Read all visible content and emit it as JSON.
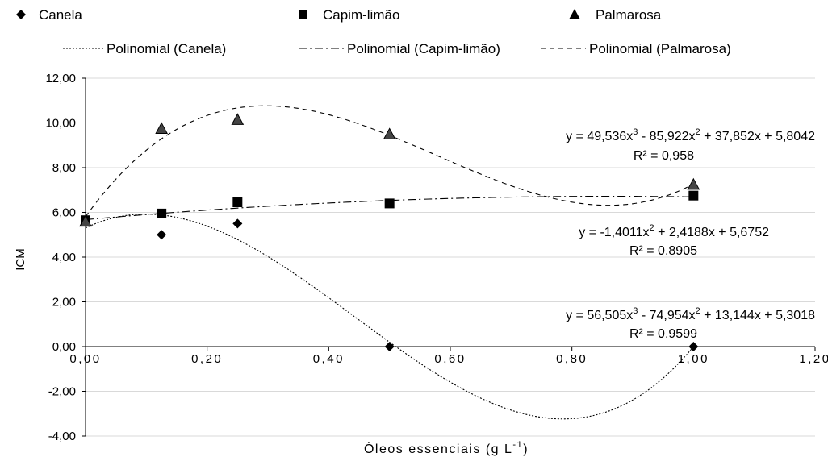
{
  "chart_data": {
    "type": "scatter",
    "xlabel": "Óleos essenciais (g L",
    "xlabel_sup": "-1",
    "xlabel_close": ")",
    "ylabel": "ICM",
    "xlim": [
      0,
      1.2
    ],
    "ylim": [
      -4,
      12
    ],
    "x_ticks": [
      0,
      0.2,
      0.4,
      0.6,
      0.8,
      1.0,
      1.2
    ],
    "y_ticks": [
      -4,
      -2,
      0,
      2,
      4,
      6,
      8,
      10,
      12
    ],
    "x_tick_labels": [
      "0,00",
      "0,20",
      "0,40",
      "0,60",
      "0,80",
      "1,00",
      "1,20"
    ],
    "y_tick_labels": [
      "-4,00",
      "-2,00",
      "0,00",
      "2,00",
      "4,00",
      "6,00",
      "8,00",
      "10,00",
      "12,00"
    ],
    "grid": "horizontal",
    "legend_position": "top",
    "series": [
      {
        "name": "Canela",
        "marker": "diamond",
        "x": [
          0,
          0.125,
          0.25,
          0.5,
          1.0
        ],
        "y": [
          5.6,
          5.0,
          5.5,
          0.0,
          0.0
        ],
        "trend": {
          "name": "Polinomial (Canela)",
          "style": "dotted",
          "coefficients": [
            5.3018,
            13.144,
            -74.954,
            56.505
          ]
        },
        "equation": {
          "prefix": "y = 56,505x",
          "sup1": "3",
          "mid1": " - 74,954x",
          "sup2": "2",
          "rest": " + 13,144x + 5,3018",
          "r2": "R² = 0,9599"
        }
      },
      {
        "name": "Capim-limão",
        "marker": "square",
        "x": [
          0,
          0.125,
          0.25,
          0.5,
          1.0
        ],
        "y": [
          5.65,
          5.95,
          6.45,
          6.4,
          6.75
        ],
        "trend": {
          "name": "Polinomial (Capim-limão)",
          "style": "dashdot",
          "coefficients": [
            5.6752,
            2.4188,
            -1.4011
          ]
        },
        "equation": {
          "prefix": "y = -1,4011x",
          "sup1": "2",
          "mid1": " + 2,4188x + 5,6752",
          "sup2": "",
          "rest": "",
          "r2": "R² = 0,8905"
        }
      },
      {
        "name": "Palmarosa",
        "marker": "triangle",
        "x": [
          0,
          0.125,
          0.25,
          0.5,
          1.0
        ],
        "y": [
          5.6,
          9.75,
          10.15,
          9.5,
          7.25
        ],
        "trend": {
          "name": "Polinomial (Palmarosa)",
          "style": "dashed",
          "coefficients": [
            5.8042,
            37.852,
            -85.922,
            49.536
          ]
        },
        "equation": {
          "prefix": "y = 49,536x",
          "sup1": "3",
          "mid1": " - 85,922x",
          "sup2": "2",
          "rest": " + 37,852x + 5,8042",
          "r2": "R² = 0,958"
        }
      }
    ]
  }
}
